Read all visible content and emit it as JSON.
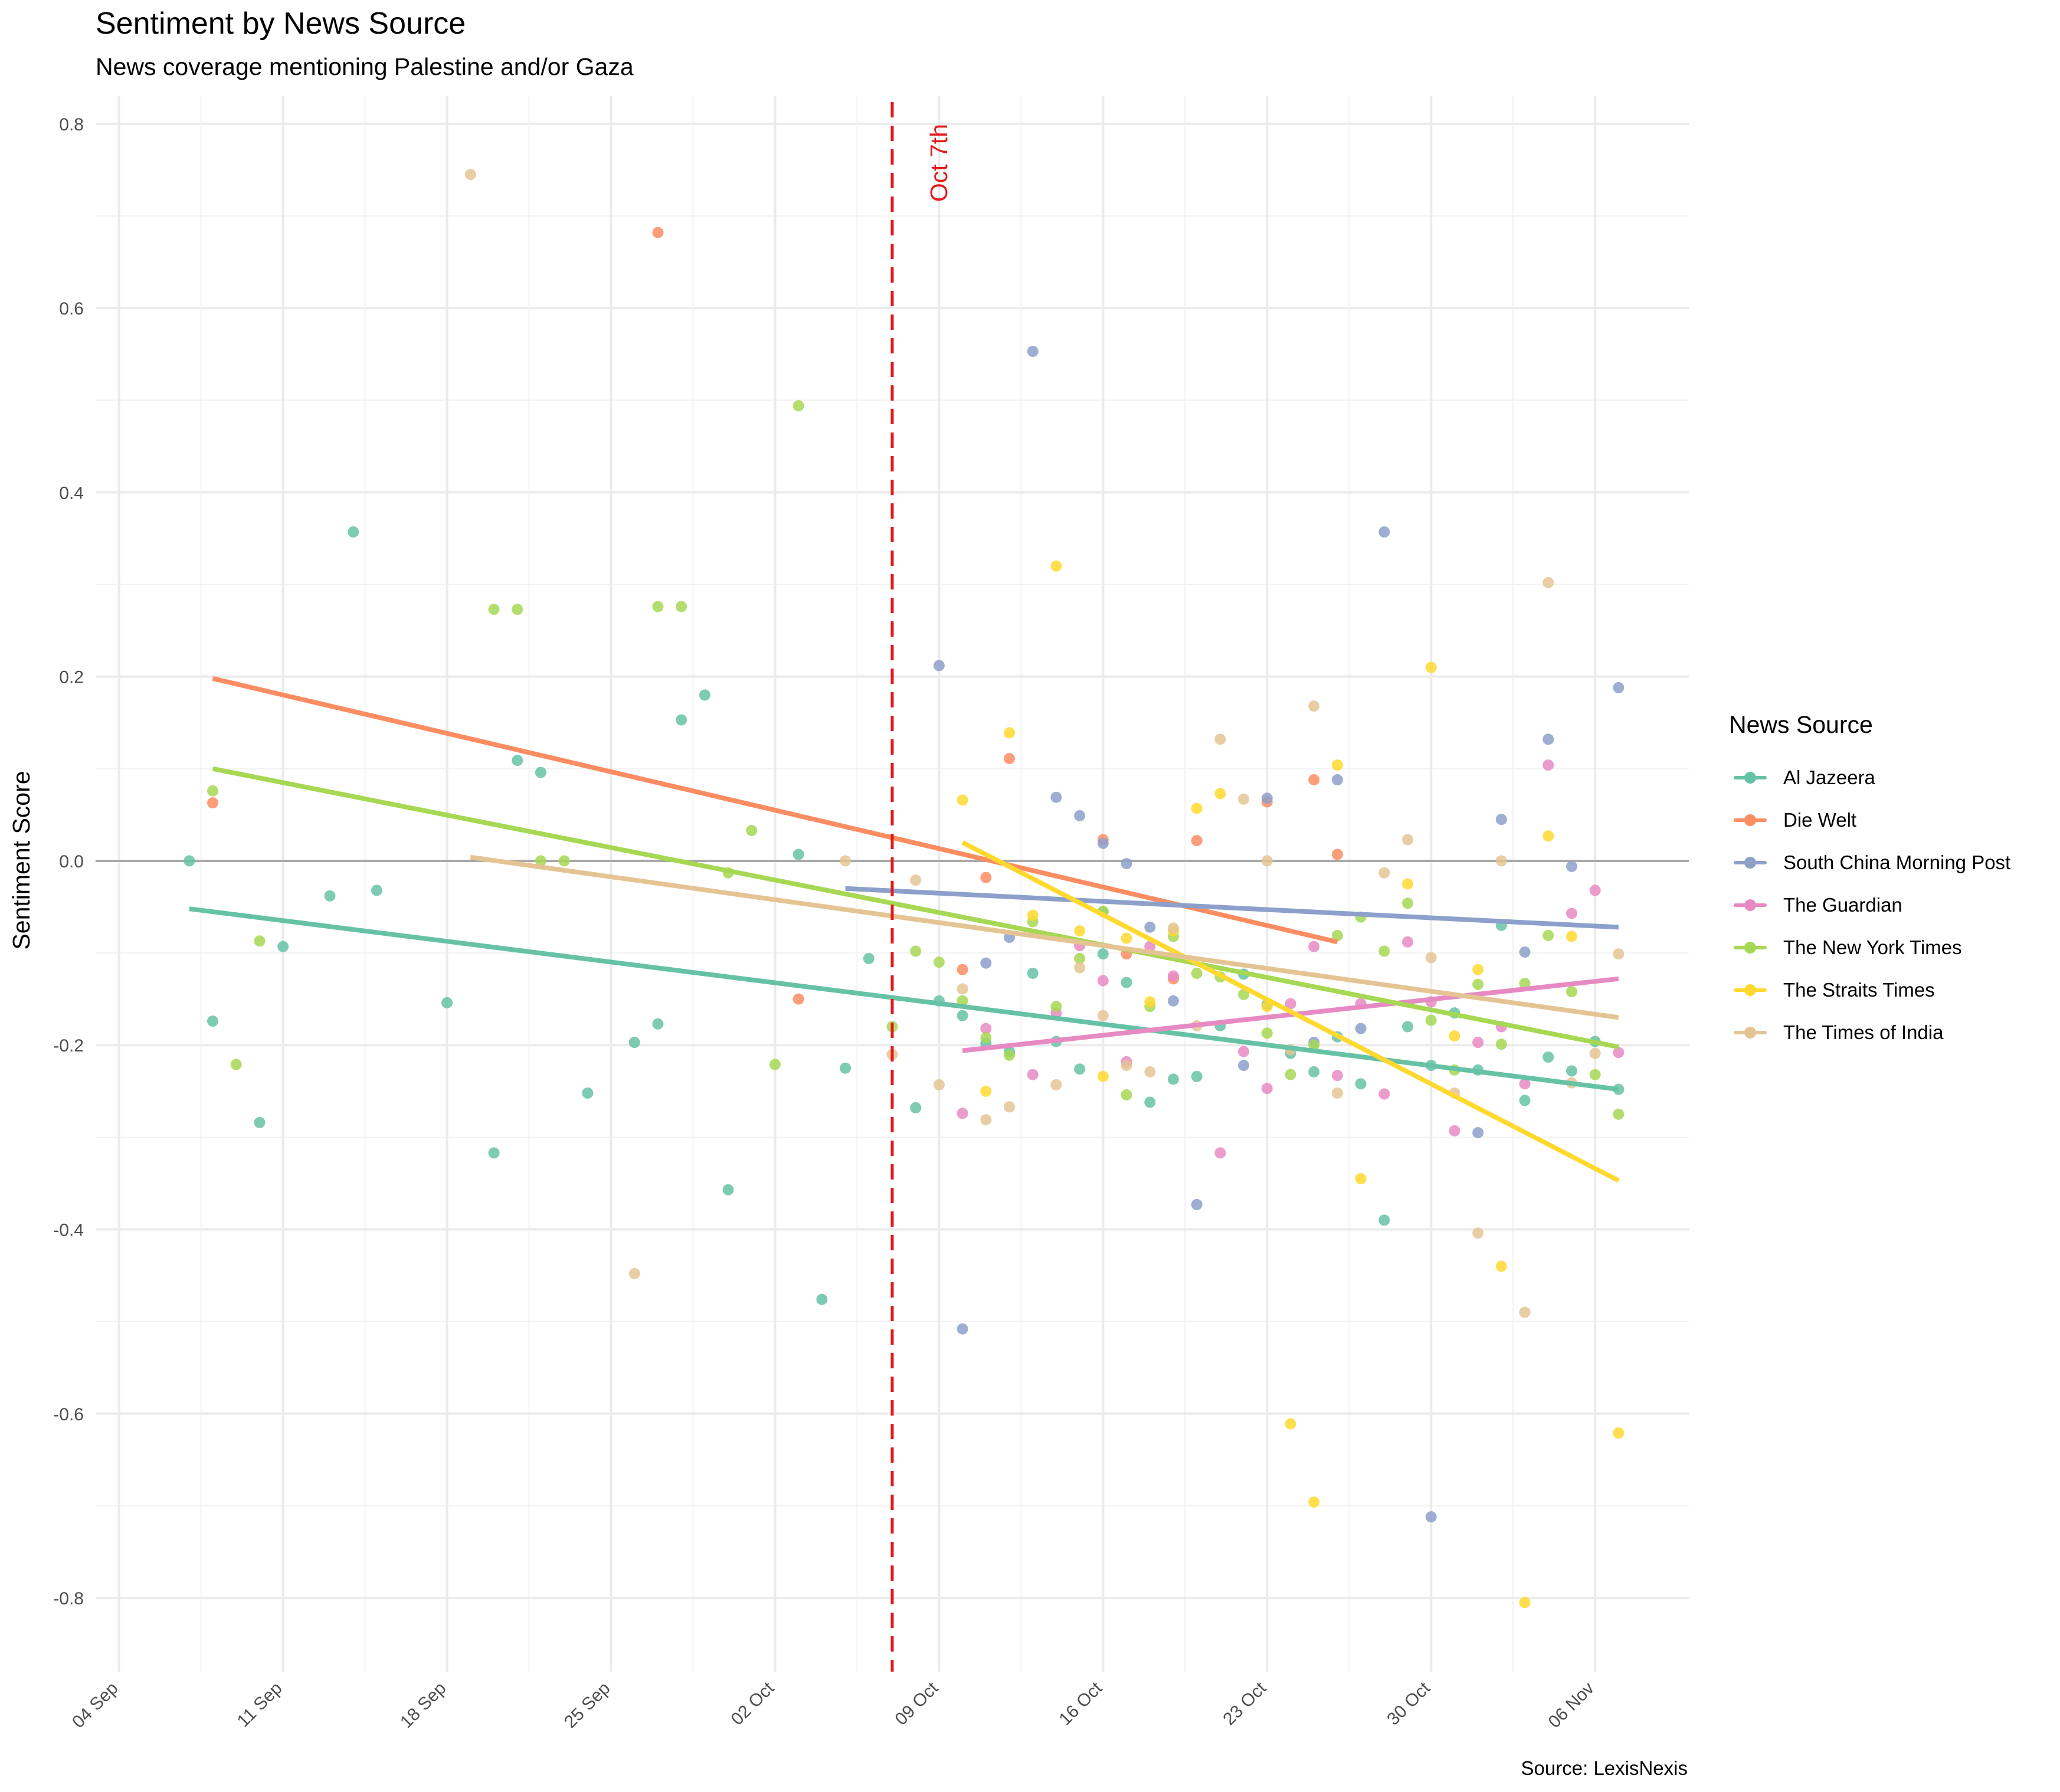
{
  "chart_data": {
    "type": "scatter",
    "title": "Sentiment by News Source",
    "subtitle": "News coverage mentioning Palestine and/or Gaza",
    "xlabel": "",
    "ylabel": "Sentiment Score",
    "caption": "Source: LexisNexis",
    "x_range": [
      "2023-09-03",
      "2023-11-10"
    ],
    "ylim": [
      -0.88,
      0.83
    ],
    "x_ticks": [
      "04 Sep",
      "11 Sep",
      "18 Sep",
      "25 Sep",
      "02 Oct",
      "09 Oct",
      "16 Oct",
      "23 Oct",
      "30 Oct",
      "06 Nov"
    ],
    "x_tick_dates": [
      "2023-09-04",
      "2023-09-11",
      "2023-09-18",
      "2023-09-25",
      "2023-10-02",
      "2023-10-09",
      "2023-10-16",
      "2023-10-23",
      "2023-10-30",
      "2023-11-06"
    ],
    "y_ticks": [
      "0.8",
      "0.6",
      "0.4",
      "0.2",
      "0.0",
      "-0.2",
      "-0.4",
      "-0.6",
      "-0.8"
    ],
    "y_tick_values": [
      0.8,
      0.6,
      0.4,
      0.2,
      0.0,
      -0.2,
      -0.4,
      -0.6,
      -0.8
    ],
    "grid": true,
    "reference_line": {
      "y": 0.0
    },
    "annotation": {
      "label": "Oct 7th",
      "date": "2023-10-07",
      "color": "#e41a1c"
    },
    "legend": {
      "title": "News Source",
      "position": "right"
    },
    "series": [
      {
        "name": "Al Jazeera",
        "color": "#66c2a5",
        "trend": [
          [
            "2023-09-07",
            -0.052
          ],
          [
            "2023-11-07",
            -0.248
          ]
        ],
        "points": [
          [
            "2023-09-07",
            0.0
          ],
          [
            "2023-09-08",
            -0.174
          ],
          [
            "2023-09-10",
            -0.284
          ],
          [
            "2023-09-11",
            -0.093
          ],
          [
            "2023-09-13",
            -0.038
          ],
          [
            "2023-09-14",
            0.357
          ],
          [
            "2023-09-15",
            -0.032
          ],
          [
            "2023-09-18",
            -0.154
          ],
          [
            "2023-09-20",
            -0.317
          ],
          [
            "2023-09-21",
            0.109
          ],
          [
            "2023-09-22",
            0.096
          ],
          [
            "2023-09-24",
            -0.252
          ],
          [
            "2023-09-26",
            -0.197
          ],
          [
            "2023-09-27",
            -0.177
          ],
          [
            "2023-09-28",
            0.153
          ],
          [
            "2023-09-29",
            0.18
          ],
          [
            "2023-09-30",
            -0.357
          ],
          [
            "2023-10-03",
            0.007
          ],
          [
            "2023-10-04",
            -0.476
          ],
          [
            "2023-10-05",
            -0.225
          ],
          [
            "2023-10-06",
            -0.106
          ],
          [
            "2023-10-08",
            -0.268
          ],
          [
            "2023-10-09",
            -0.152
          ],
          [
            "2023-10-10",
            -0.168
          ],
          [
            "2023-10-11",
            -0.198
          ],
          [
            "2023-10-12",
            -0.207
          ],
          [
            "2023-10-13",
            -0.122
          ],
          [
            "2023-10-14",
            -0.196
          ],
          [
            "2023-10-15",
            -0.226
          ],
          [
            "2023-10-16",
            -0.101
          ],
          [
            "2023-10-16",
            -0.055
          ],
          [
            "2023-10-17",
            -0.132
          ],
          [
            "2023-10-18",
            -0.262
          ],
          [
            "2023-10-19",
            -0.237
          ],
          [
            "2023-10-20",
            -0.234
          ],
          [
            "2023-10-21",
            -0.179
          ],
          [
            "2023-10-22",
            -0.123
          ],
          [
            "2023-10-23",
            -0.156
          ],
          [
            "2023-10-24",
            -0.209
          ],
          [
            "2023-10-25",
            -0.229
          ],
          [
            "2023-10-26",
            -0.191
          ],
          [
            "2023-10-27",
            -0.242
          ],
          [
            "2023-10-28",
            -0.39
          ],
          [
            "2023-10-29",
            -0.18
          ],
          [
            "2023-10-30",
            -0.222
          ],
          [
            "2023-10-31",
            -0.165
          ],
          [
            "2023-11-01",
            -0.227
          ],
          [
            "2023-11-02",
            -0.07
          ],
          [
            "2023-11-03",
            -0.26
          ],
          [
            "2023-11-04",
            -0.213
          ],
          [
            "2023-11-05",
            -0.228
          ],
          [
            "2023-11-06",
            -0.196
          ],
          [
            "2023-11-07",
            -0.248
          ]
        ]
      },
      {
        "name": "Die Welt",
        "color": "#fc8d62",
        "trend": [
          [
            "2023-09-08",
            0.198
          ],
          [
            "2023-10-26",
            -0.088
          ]
        ],
        "points": [
          [
            "2023-09-08",
            0.063
          ],
          [
            "2023-09-27",
            0.682
          ],
          [
            "2023-10-03",
            -0.15
          ],
          [
            "2023-10-10",
            -0.118
          ],
          [
            "2023-10-11",
            -0.018
          ],
          [
            "2023-10-12",
            0.111
          ],
          [
            "2023-10-16",
            0.023
          ],
          [
            "2023-10-17",
            -0.101
          ],
          [
            "2023-10-19",
            -0.128
          ],
          [
            "2023-10-20",
            0.022
          ],
          [
            "2023-10-23",
            0.064
          ],
          [
            "2023-10-25",
            0.088
          ],
          [
            "2023-10-26",
            0.007
          ]
        ]
      },
      {
        "name": "South China Morning Post",
        "color": "#8da0cb",
        "trend": [
          [
            "2023-10-05",
            -0.03
          ],
          [
            "2023-11-07",
            -0.072
          ]
        ],
        "points": [
          [
            "2023-10-09",
            0.212
          ],
          [
            "2023-10-10",
            -0.508
          ],
          [
            "2023-10-11",
            -0.111
          ],
          [
            "2023-10-12",
            -0.083
          ],
          [
            "2023-10-13",
            0.553
          ],
          [
            "2023-10-14",
            0.069
          ],
          [
            "2023-10-15",
            0.049
          ],
          [
            "2023-10-16",
            0.019
          ],
          [
            "2023-10-17",
            -0.003
          ],
          [
            "2023-10-18",
            -0.072
          ],
          [
            "2023-10-19",
            -0.152
          ],
          [
            "2023-10-20",
            -0.373
          ],
          [
            "2023-10-22",
            -0.222
          ],
          [
            "2023-10-23",
            0.068
          ],
          [
            "2023-10-25",
            -0.197
          ],
          [
            "2023-10-26",
            0.088
          ],
          [
            "2023-10-27",
            -0.182
          ],
          [
            "2023-10-28",
            0.357
          ],
          [
            "2023-10-30",
            -0.712
          ],
          [
            "2023-11-01",
            -0.295
          ],
          [
            "2023-11-02",
            0.045
          ],
          [
            "2023-11-03",
            -0.099
          ],
          [
            "2023-11-04",
            0.132
          ],
          [
            "2023-11-05",
            -0.006
          ],
          [
            "2023-11-07",
            0.188
          ]
        ]
      },
      {
        "name": "The Guardian",
        "color": "#e78ac3",
        "trend": [
          [
            "2023-10-10",
            -0.206
          ],
          [
            "2023-11-07",
            -0.128
          ]
        ],
        "points": [
          [
            "2023-10-10",
            -0.274
          ],
          [
            "2023-10-11",
            -0.182
          ],
          [
            "2023-10-13",
            -0.232
          ],
          [
            "2023-10-14",
            -0.165
          ],
          [
            "2023-10-15",
            -0.092
          ],
          [
            "2023-10-16",
            -0.13
          ],
          [
            "2023-10-17",
            -0.218
          ],
          [
            "2023-10-18",
            -0.093
          ],
          [
            "2023-10-19",
            -0.125
          ],
          [
            "2023-10-21",
            -0.317
          ],
          [
            "2023-10-22",
            -0.207
          ],
          [
            "2023-10-23",
            -0.247
          ],
          [
            "2023-10-24",
            -0.155
          ],
          [
            "2023-10-25",
            -0.093
          ],
          [
            "2023-10-26",
            -0.233
          ],
          [
            "2023-10-27",
            -0.155
          ],
          [
            "2023-10-28",
            -0.253
          ],
          [
            "2023-10-29",
            -0.088
          ],
          [
            "2023-10-30",
            -0.153
          ],
          [
            "2023-10-31",
            -0.293
          ],
          [
            "2023-11-01",
            -0.197
          ],
          [
            "2023-11-02",
            -0.18
          ],
          [
            "2023-11-03",
            -0.242
          ],
          [
            "2023-11-04",
            0.104
          ],
          [
            "2023-11-05",
            -0.057
          ],
          [
            "2023-11-06",
            -0.032
          ],
          [
            "2023-11-07",
            -0.208
          ]
        ]
      },
      {
        "name": "The New York Times",
        "color": "#a6d854",
        "trend": [
          [
            "2023-09-08",
            0.1
          ],
          [
            "2023-11-07",
            -0.202
          ]
        ],
        "points": [
          [
            "2023-09-08",
            0.076
          ],
          [
            "2023-09-09",
            -0.221
          ],
          [
            "2023-09-10",
            -0.087
          ],
          [
            "2023-09-20",
            0.273
          ],
          [
            "2023-09-21",
            0.273
          ],
          [
            "2023-09-22",
            0.0
          ],
          [
            "2023-09-23",
            0.0
          ],
          [
            "2023-09-27",
            0.276
          ],
          [
            "2023-09-28",
            0.276
          ],
          [
            "2023-09-30",
            -0.013
          ],
          [
            "2023-10-01",
            0.033
          ],
          [
            "2023-10-02",
            -0.221
          ],
          [
            "2023-10-03",
            0.494
          ],
          [
            "2023-10-07",
            -0.18
          ],
          [
            "2023-10-08",
            -0.098
          ],
          [
            "2023-10-09",
            -0.11
          ],
          [
            "2023-10-10",
            -0.152
          ],
          [
            "2023-10-11",
            -0.192
          ],
          [
            "2023-10-12",
            -0.211
          ],
          [
            "2023-10-13",
            -0.066
          ],
          [
            "2023-10-14",
            -0.158
          ],
          [
            "2023-10-15",
            -0.106
          ],
          [
            "2023-10-16",
            -0.055
          ],
          [
            "2023-10-17",
            -0.254
          ],
          [
            "2023-10-18",
            -0.158
          ],
          [
            "2023-10-19",
            -0.082
          ],
          [
            "2023-10-20",
            -0.122
          ],
          [
            "2023-10-21",
            -0.126
          ],
          [
            "2023-10-22",
            -0.145
          ],
          [
            "2023-10-23",
            -0.187
          ],
          [
            "2023-10-24",
            -0.232
          ],
          [
            "2023-10-25",
            -0.2
          ],
          [
            "2023-10-26",
            -0.081
          ],
          [
            "2023-10-27",
            -0.061
          ],
          [
            "2023-10-28",
            -0.098
          ],
          [
            "2023-10-29",
            -0.046
          ],
          [
            "2023-10-30",
            -0.173
          ],
          [
            "2023-10-31",
            -0.227
          ],
          [
            "2023-11-01",
            -0.134
          ],
          [
            "2023-11-02",
            -0.199
          ],
          [
            "2023-11-03",
            -0.133
          ],
          [
            "2023-11-04",
            -0.081
          ],
          [
            "2023-11-05",
            -0.142
          ],
          [
            "2023-11-06",
            -0.232
          ],
          [
            "2023-11-07",
            -0.275
          ]
        ]
      },
      {
        "name": "The Straits Times",
        "color": "#ffd92f",
        "trend": [
          [
            "2023-10-10",
            0.02
          ],
          [
            "2023-11-07",
            -0.347
          ]
        ],
        "points": [
          [
            "2023-10-10",
            0.066
          ],
          [
            "2023-10-11",
            -0.25
          ],
          [
            "2023-10-12",
            0.139
          ],
          [
            "2023-10-13",
            -0.059
          ],
          [
            "2023-10-14",
            0.32
          ],
          [
            "2023-10-15",
            -0.076
          ],
          [
            "2023-10-16",
            -0.234
          ],
          [
            "2023-10-17",
            -0.084
          ],
          [
            "2023-10-18",
            -0.153
          ],
          [
            "2023-10-19",
            -0.076
          ],
          [
            "2023-10-20",
            0.057
          ],
          [
            "2023-10-21",
            0.073
          ],
          [
            "2023-10-23",
            -0.158
          ],
          [
            "2023-10-24",
            -0.611
          ],
          [
            "2023-10-25",
            -0.696
          ],
          [
            "2023-10-26",
            0.104
          ],
          [
            "2023-10-27",
            -0.345
          ],
          [
            "2023-10-29",
            -0.025
          ],
          [
            "2023-10-30",
            0.21
          ],
          [
            "2023-10-31",
            -0.19
          ],
          [
            "2023-11-01",
            -0.118
          ],
          [
            "2023-11-02",
            -0.44
          ],
          [
            "2023-11-03",
            -0.805
          ],
          [
            "2023-11-04",
            0.027
          ],
          [
            "2023-11-05",
            -0.082
          ],
          [
            "2023-11-07",
            -0.621
          ]
        ]
      },
      {
        "name": "The Times of India",
        "color": "#e5c494",
        "trend": [
          [
            "2023-09-19",
            0.004
          ],
          [
            "2023-11-07",
            -0.17
          ]
        ],
        "points": [
          [
            "2023-09-19",
            0.745
          ],
          [
            "2023-09-26",
            -0.448
          ],
          [
            "2023-10-05",
            0.0
          ],
          [
            "2023-10-07",
            -0.21
          ],
          [
            "2023-10-08",
            -0.021
          ],
          [
            "2023-10-09",
            -0.243
          ],
          [
            "2023-10-10",
            -0.139
          ],
          [
            "2023-10-11",
            -0.281
          ],
          [
            "2023-10-12",
            -0.267
          ],
          [
            "2023-10-14",
            -0.243
          ],
          [
            "2023-10-15",
            -0.116
          ],
          [
            "2023-10-16",
            -0.168
          ],
          [
            "2023-10-17",
            -0.222
          ],
          [
            "2023-10-18",
            -0.229
          ],
          [
            "2023-10-19",
            -0.073
          ],
          [
            "2023-10-20",
            -0.179
          ],
          [
            "2023-10-21",
            0.132
          ],
          [
            "2023-10-22",
            0.067
          ],
          [
            "2023-10-23",
            0.0
          ],
          [
            "2023-10-24",
            -0.205
          ],
          [
            "2023-10-25",
            0.168
          ],
          [
            "2023-10-26",
            -0.252
          ],
          [
            "2023-10-28",
            -0.013
          ],
          [
            "2023-10-29",
            0.023
          ],
          [
            "2023-10-30",
            -0.105
          ],
          [
            "2023-10-31",
            -0.252
          ],
          [
            "2023-11-01",
            -0.404
          ],
          [
            "2023-11-02",
            0.0
          ],
          [
            "2023-11-03",
            -0.49
          ],
          [
            "2023-11-04",
            0.302
          ],
          [
            "2023-11-05",
            -0.241
          ],
          [
            "2023-11-06",
            -0.209
          ],
          [
            "2023-11-07",
            -0.101
          ]
        ]
      }
    ]
  }
}
